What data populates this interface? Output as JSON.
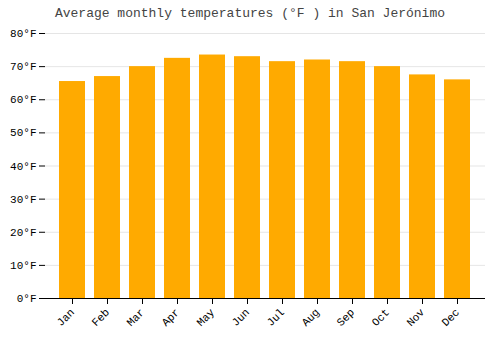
{
  "chart_data": {
    "type": "bar",
    "title": "Average monthly temperatures (°F ) in San Jerónimo",
    "categories": [
      "Jan",
      "Feb",
      "Mar",
      "Apr",
      "May",
      "Jun",
      "Jul",
      "Aug",
      "Sep",
      "Oct",
      "Nov",
      "Dec"
    ],
    "values": [
      65.5,
      67.0,
      70.0,
      72.5,
      73.5,
      73.0,
      71.5,
      72.0,
      71.5,
      70.0,
      67.5,
      66.0
    ],
    "color": "#FFAA00",
    "ylim": [
      0,
      80
    ],
    "yticks": [
      {
        "value": 0,
        "label": "0°F"
      },
      {
        "value": 10,
        "label": "10°F"
      },
      {
        "value": 20,
        "label": "20°F"
      },
      {
        "value": 30,
        "label": "30°F"
      },
      {
        "value": 40,
        "label": "40°F"
      },
      {
        "value": 50,
        "label": "50°F"
      },
      {
        "value": 60,
        "label": "60°F"
      },
      {
        "value": 70,
        "label": "70°F"
      },
      {
        "value": 80,
        "label": "80°F"
      }
    ],
    "grid": true
  }
}
